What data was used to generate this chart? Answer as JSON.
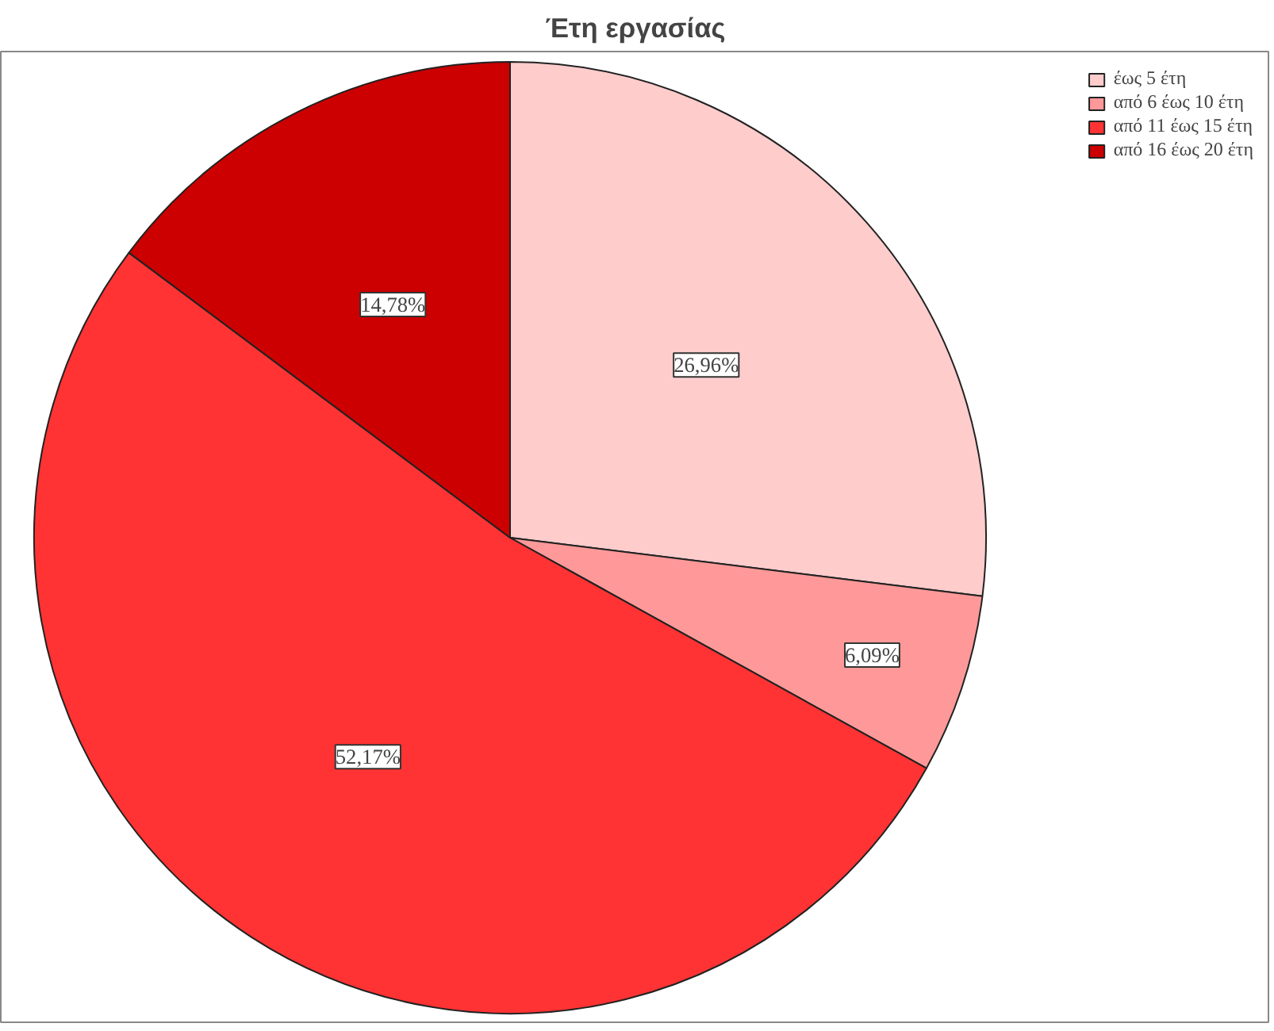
{
  "chart_data": {
    "type": "pie",
    "title": "Έτη εργασίας",
    "categories": [
      "έως 5 έτη",
      "από 6 έως 10 έτη",
      "από 11 έως 15 έτη",
      "από 16 έως 20 έτη"
    ],
    "values": [
      26.96,
      6.09,
      52.17,
      14.78
    ],
    "value_labels": [
      "26,96%",
      "6,09%",
      "52,17%",
      "14,78%"
    ],
    "colors": [
      "#ffcccc",
      "#ff9999",
      "#ff3333",
      "#cc0000"
    ],
    "legend": "top right"
  }
}
